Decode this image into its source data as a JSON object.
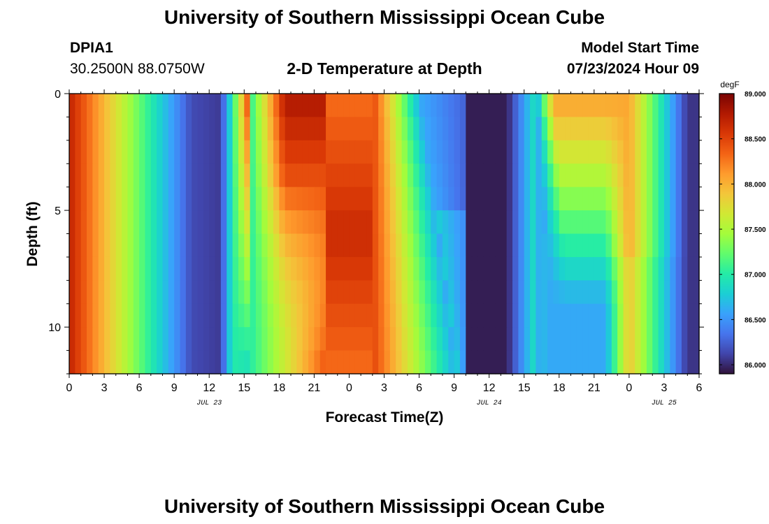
{
  "header": {
    "title": "University of Southern Mississippi Ocean Cube",
    "station_id": "DPIA1",
    "station_coords": "30.2500N  88.0750W",
    "plot_title": "2-D Temperature at Depth",
    "start_label": "Model Start Time",
    "start_value": "07/23/2024 Hour 09"
  },
  "footer": {
    "repeat_title": "University of Southern Mississippi Ocean Cube"
  },
  "chart_data": {
    "type": "heatmap",
    "title": "2-D Temperature at Depth",
    "xlabel": "Forecast Time(Z)",
    "ylabel": "Depth (ft)",
    "x_ticks": [
      "0",
      "3",
      "6",
      "9",
      "12",
      "15",
      "18",
      "21",
      "0",
      "3",
      "6",
      "9",
      "12",
      "15",
      "18",
      "21",
      "0",
      "3",
      "6"
    ],
    "x_hours": [
      0,
      3,
      6,
      9,
      12,
      15,
      18,
      21,
      24,
      27,
      30,
      33,
      36,
      39,
      42,
      45,
      48,
      51,
      54
    ],
    "date_labels": [
      {
        "label": "JUL 23",
        "hour": 12
      },
      {
        "label": "JUL 24",
        "hour": 36
      },
      {
        "label": "JUL 25",
        "hour": 51
      }
    ],
    "xlim": [
      0,
      54
    ],
    "y_ticks": [
      "0",
      "5",
      "10"
    ],
    "y_tick_values": [
      0,
      5,
      10
    ],
    "ylim": [
      0,
      12
    ],
    "y_reversed": true,
    "colorbar": {
      "unit": "degF",
      "min": 85.9,
      "max": 89.0,
      "ticks": [
        "89.000",
        "88.500",
        "88.000",
        "87.500",
        "87.000",
        "86.500",
        "86.000"
      ],
      "tick_values": [
        89.0,
        88.5,
        88.0,
        87.5,
        87.0,
        86.5,
        86.0
      ],
      "colors": [
        "#30123b",
        "#4145ab",
        "#4675ed",
        "#39a2fc",
        "#1bcfd4",
        "#24eca6",
        "#61fc6c",
        "#a4fc3b",
        "#d1e834",
        "#f3c63a",
        "#fe9b2d",
        "#f36315",
        "#d93806",
        "#b11901",
        "#7a0403"
      ]
    },
    "depths": [
      0,
      1,
      2,
      3,
      4,
      5,
      6,
      7,
      8,
      9,
      10,
      11
    ],
    "time_step_hours": 0.5
  }
}
